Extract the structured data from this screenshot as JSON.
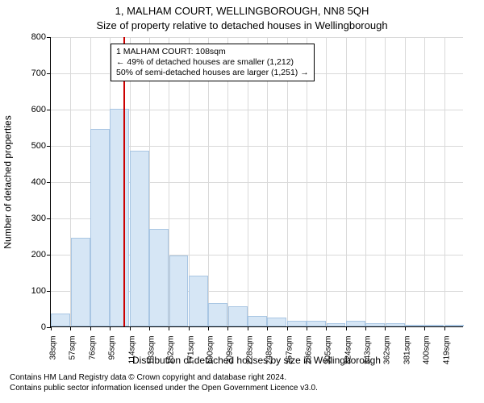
{
  "title": "1, MALHAM COURT, WELLINGBOROUGH, NN8 5QH",
  "subtitle": "Size of property relative to detached houses in Wellingborough",
  "ylabel": "Number of detached properties",
  "xlabel": "Distribution of detached houses by size in Wellingborough",
  "footer": {
    "line1": "Contains HM Land Registry data © Crown copyright and database right 2024.",
    "line2": "Contains public sector information licensed under the Open Government Licence v3.0."
  },
  "chart": {
    "type": "histogram",
    "ylim": [
      0,
      800
    ],
    "ytick_step": 100,
    "bar_fill": "#d6e6f5",
    "bar_stroke": "#a9c6e3",
    "grid_color": "#d9d9d9",
    "marker_color": "#cc0000",
    "marker_value_sqm": 108,
    "x_start": 38,
    "x_step": 19,
    "x_unit": "sqm",
    "categories": [
      "38sqm",
      "57sqm",
      "76sqm",
      "95sqm",
      "114sqm",
      "133sqm",
      "152sqm",
      "171sqm",
      "190sqm",
      "209sqm",
      "228sqm",
      "248sqm",
      "267sqm",
      "286sqm",
      "305sqm",
      "324sqm",
      "343sqm",
      "362sqm",
      "381sqm",
      "400sqm",
      "419sqm"
    ],
    "values": [
      35,
      245,
      545,
      600,
      485,
      270,
      195,
      140,
      65,
      55,
      30,
      25,
      15,
      15,
      10,
      15,
      8,
      10,
      0,
      5,
      5
    ],
    "annotation": {
      "line1": "1 MALHAM COURT: 108sqm",
      "line2": "← 49% of detached houses are smaller (1,212)",
      "line3": "50% of semi-detached houses are larger (1,251) →"
    }
  }
}
